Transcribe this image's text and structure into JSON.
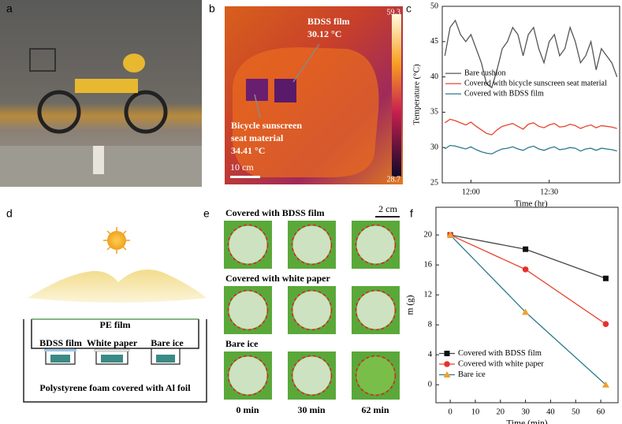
{
  "panel_labels": [
    "a",
    "b",
    "c",
    "d",
    "e",
    "f"
  ],
  "thermal_image": {
    "annotations": [
      "BDSS film",
      "30.12 °C",
      "Bicycle sunscreen",
      "seat material",
      "34.41 °C"
    ],
    "scale_bar": "10 cm",
    "colorbar_max": 59.3,
    "colorbar_min": 28.7
  },
  "diagram": {
    "labels": [
      "PE film",
      "BDSS film",
      "White paper",
      "Bare ice",
      "Polystyrene foam covered with Al foil"
    ]
  },
  "photo_grid": {
    "row_titles": [
      "Covered with BDSS film",
      "Covered with white paper",
      "Bare ice"
    ],
    "column_labels": [
      "0 min",
      "30 min",
      "62 min"
    ],
    "scale_bar": "2 cm"
  },
  "chart_data": [
    {
      "type": "line",
      "x_label": "Time (hr)",
      "y_label": "Temperature (°C)",
      "x": [
        "11:50",
        "11:52",
        "11:54",
        "11:56",
        "11:58",
        "12:00",
        "12:02",
        "12:04",
        "12:06",
        "12:08",
        "12:10",
        "12:12",
        "12:14",
        "12:16",
        "12:18",
        "12:20",
        "12:22",
        "12:24",
        "12:26",
        "12:28",
        "12:30",
        "12:32",
        "12:34",
        "12:36",
        "12:38",
        "12:40",
        "12:42",
        "12:44",
        "12:46",
        "12:48",
        "12:50",
        "12:52",
        "12:54",
        "12:56"
      ],
      "series": [
        {
          "name": "Bare cushion",
          "color": "#555555",
          "values": [
            43,
            47,
            48,
            46,
            45,
            46,
            44,
            42,
            39,
            38.5,
            41,
            44,
            45,
            47,
            46,
            43,
            46,
            47,
            44,
            42,
            45,
            46,
            43,
            44,
            47,
            45,
            42,
            43,
            45,
            41,
            44,
            43,
            42,
            40
          ]
        },
        {
          "name": "Covered with bicycle sunscreen seat material",
          "color": "#e8452c",
          "values": [
            33.5,
            34,
            33.8,
            33.5,
            33.2,
            33.6,
            33,
            32.5,
            32,
            31.8,
            32.5,
            33,
            33.2,
            33.4,
            33,
            32.6,
            33.3,
            33.5,
            33,
            32.8,
            33.2,
            33.4,
            32.9,
            33,
            33.3,
            33.1,
            32.7,
            33,
            33.2,
            32.8,
            33.1,
            33,
            32.9,
            32.7
          ]
        },
        {
          "name": "Covered with BDSS film",
          "color": "#2a7a8c",
          "values": [
            29.8,
            30.3,
            30.2,
            30,
            29.8,
            30.1,
            29.7,
            29.4,
            29.2,
            29.1,
            29.5,
            29.8,
            29.9,
            30.1,
            29.8,
            29.6,
            30,
            30.2,
            29.8,
            29.6,
            29.9,
            30.1,
            29.7,
            29.8,
            30,
            29.9,
            29.5,
            29.8,
            29.9,
            29.6,
            29.9,
            29.8,
            29.7,
            29.5
          ]
        }
      ],
      "xlim": [
        "11:49",
        "12:57"
      ],
      "xticks": [
        "12:00",
        "12:30"
      ],
      "ylim": [
        25,
        50
      ],
      "yticks": [
        25,
        30,
        35,
        40,
        45,
        50
      ],
      "legend": "center left"
    },
    {
      "type": "line",
      "x_label": "Time (min)",
      "y_label": "m (g)",
      "x": [
        0,
        30,
        62
      ],
      "series": [
        {
          "name": "Covered with BDSS film",
          "color": "#444444",
          "marker": "square",
          "marker_color": "#111111",
          "values": [
            20,
            18.1,
            14.2
          ]
        },
        {
          "name": "Covered with white paper",
          "color": "#e8452c",
          "marker": "circle",
          "marker_color": "#e8302c",
          "values": [
            20,
            15.4,
            8.1
          ]
        },
        {
          "name": "Bare ice",
          "color": "#2a7a8c",
          "marker": "triangle",
          "marker_color": "#f0a030",
          "values": [
            20,
            9.7,
            0
          ]
        }
      ],
      "xlim": [
        -5.7,
        66.9
      ],
      "xticks": [
        0,
        10,
        20,
        30,
        40,
        50,
        60
      ],
      "ylim": [
        -2.4,
        23.7
      ],
      "yticks": [
        0,
        4,
        8,
        12,
        16,
        20
      ],
      "legend": "lower left"
    }
  ]
}
